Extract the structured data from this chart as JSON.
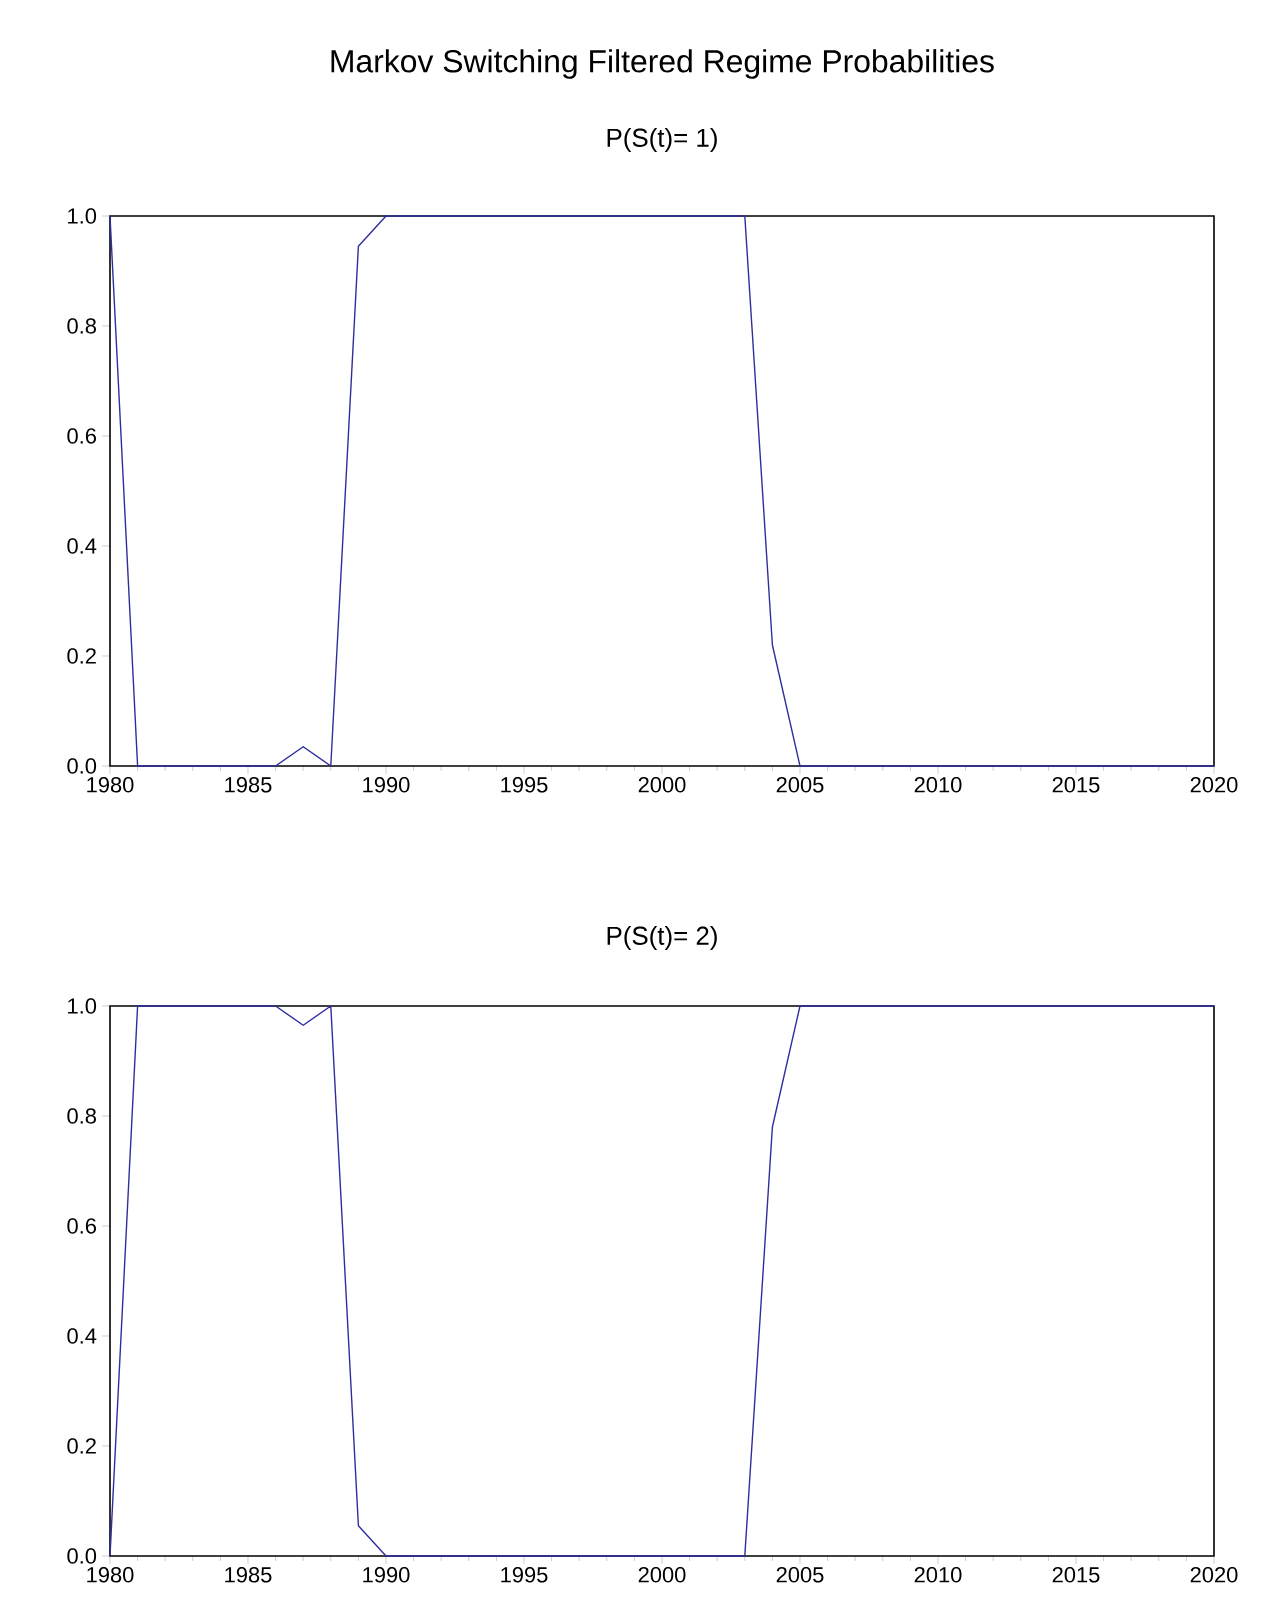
{
  "chart_data": [
    {
      "type": "line",
      "title": "Markov Switching Filtered Regime Probabilities",
      "subtitle": "P(S(t)= 1)",
      "x": [
        1980,
        1981,
        1986,
        1987,
        1988,
        1989,
        1990,
        2003,
        2004,
        2005,
        2020
      ],
      "series": [
        {
          "color": "#2e2e9e",
          "values": [
            1.0,
            0.0,
            0.0,
            0.035,
            0.0,
            0.945,
            1.0,
            1.0,
            0.22,
            0.0,
            0.0
          ]
        }
      ],
      "xlim": [
        1980,
        2020
      ],
      "xticks": [
        1980,
        1985,
        1990,
        1995,
        2000,
        2005,
        2010,
        2015,
        2020
      ],
      "ylim": [
        0,
        1
      ],
      "yticks": [
        {
          "value": 0,
          "label": "0.0"
        },
        {
          "value": 0.2,
          "label": "0.2"
        },
        {
          "value": 0.4,
          "label": "0.4"
        },
        {
          "value": 0.6,
          "label": "0.6"
        },
        {
          "value": 0.8,
          "label": "0.8"
        },
        {
          "value": 1,
          "label": "1.0"
        }
      ],
      "grid": false,
      "marker": "none",
      "line_style": "solid"
    },
    {
      "type": "line",
      "title": "P(S(t)= 2)",
      "x": [
        1980,
        1981,
        1986,
        1987,
        1988,
        1989,
        1990,
        2003,
        2004,
        2005,
        2020
      ],
      "series": [
        {
          "color": "#2e2e9e",
          "values": [
            0.0,
            1.0,
            1.0,
            0.965,
            1.0,
            0.055,
            0.0,
            0.0,
            0.78,
            1.0,
            1.0
          ]
        }
      ],
      "xlim": [
        1980,
        2020
      ],
      "xticks": [
        1980,
        1985,
        1990,
        1995,
        2000,
        2005,
        2010,
        2015,
        2020
      ],
      "ylim": [
        0,
        1
      ],
      "yticks": [
        {
          "value": 0,
          "label": "0.0"
        },
        {
          "value": 0.2,
          "label": "0.2"
        },
        {
          "value": 0.4,
          "label": "0.4"
        },
        {
          "value": 0.6,
          "label": "0.6"
        },
        {
          "value": 0.8,
          "label": "0.8"
        },
        {
          "value": 1,
          "label": "1.0"
        }
      ],
      "grid": false,
      "marker": "none",
      "line_style": "solid"
    }
  ]
}
